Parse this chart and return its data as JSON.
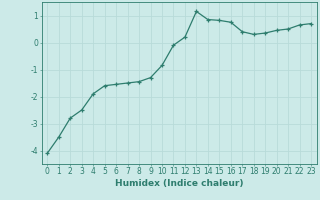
{
  "x": [
    0,
    1,
    2,
    3,
    4,
    5,
    6,
    7,
    8,
    9,
    10,
    11,
    12,
    13,
    14,
    15,
    16,
    17,
    18,
    19,
    20,
    21,
    22,
    23
  ],
  "y": [
    -4.1,
    -3.5,
    -2.8,
    -2.5,
    -1.9,
    -1.6,
    -1.55,
    -1.5,
    -1.45,
    -1.3,
    -0.85,
    -0.1,
    0.2,
    1.15,
    0.85,
    0.82,
    0.75,
    0.4,
    0.3,
    0.35,
    0.45,
    0.5,
    0.65,
    0.7
  ],
  "line_color": "#2e7d6e",
  "marker": "+",
  "bg_color": "#cceae8",
  "grid_color": "#b8dbd9",
  "axis_color": "#2e7d6e",
  "xlabel": "Humidex (Indice chaleur)",
  "xlabel_fontsize": 6.5,
  "tick_fontsize": 5.5,
  "ylim": [
    -4.5,
    1.5
  ],
  "xlim": [
    -0.5,
    23.5
  ],
  "yticks": [
    -4,
    -3,
    -2,
    -1,
    0,
    1
  ],
  "xticks": [
    0,
    1,
    2,
    3,
    4,
    5,
    6,
    7,
    8,
    9,
    10,
    11,
    12,
    13,
    14,
    15,
    16,
    17,
    18,
    19,
    20,
    21,
    22,
    23
  ],
  "linewidth": 0.9,
  "markersize": 3.0
}
